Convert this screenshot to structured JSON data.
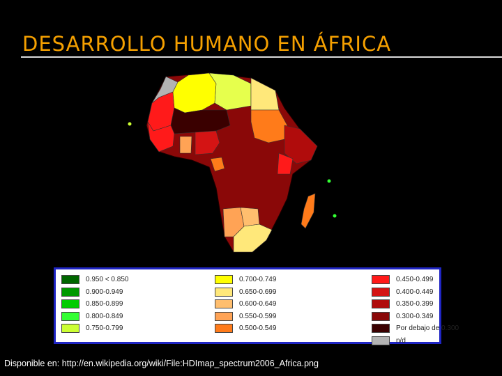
{
  "slide": {
    "title": "DESARROLLO HUMANO EN ÁFRICA",
    "caption_prefix": "Disponible en: ",
    "caption_url": "http://en.wikipedia.org/wiki/File:HDImap_spectrum2006_Africa.png"
  },
  "legend": {
    "columns": [
      [
        {
          "label": "0.950 < 0.850",
          "color": "#006600"
        },
        {
          "label": "0.900-0.949",
          "color": "#009900"
        },
        {
          "label": "0.850-0.899",
          "color": "#00cc00"
        },
        {
          "label": "0.800-0.849",
          "color": "#33ff33"
        },
        {
          "label": "0.750-0.799",
          "color": "#ccff33"
        }
      ],
      [
        {
          "label": "0.700-0.749",
          "color": "#ffff00"
        },
        {
          "label": "0.650-0.699",
          "color": "#ffe87a"
        },
        {
          "label": "0.600-0.649",
          "color": "#ffbe6e"
        },
        {
          "label": "0.550-0.599",
          "color": "#ffa355"
        },
        {
          "label": "0.500-0.549",
          "color": "#ff7b1a"
        }
      ],
      [
        {
          "label": "0.450-0.499",
          "color": "#ff1a1a"
        },
        {
          "label": "0.400-0.449",
          "color": "#d41414"
        },
        {
          "label": "0.350-0.399",
          "color": "#b00c0c"
        },
        {
          "label": "0.300-0.349",
          "color": "#8a0808"
        },
        {
          "label": "Por debajo de 0.300",
          "color": "#3a0000"
        },
        {
          "label": "n/d",
          "color": "#b3b3b3"
        }
      ]
    ]
  }
}
